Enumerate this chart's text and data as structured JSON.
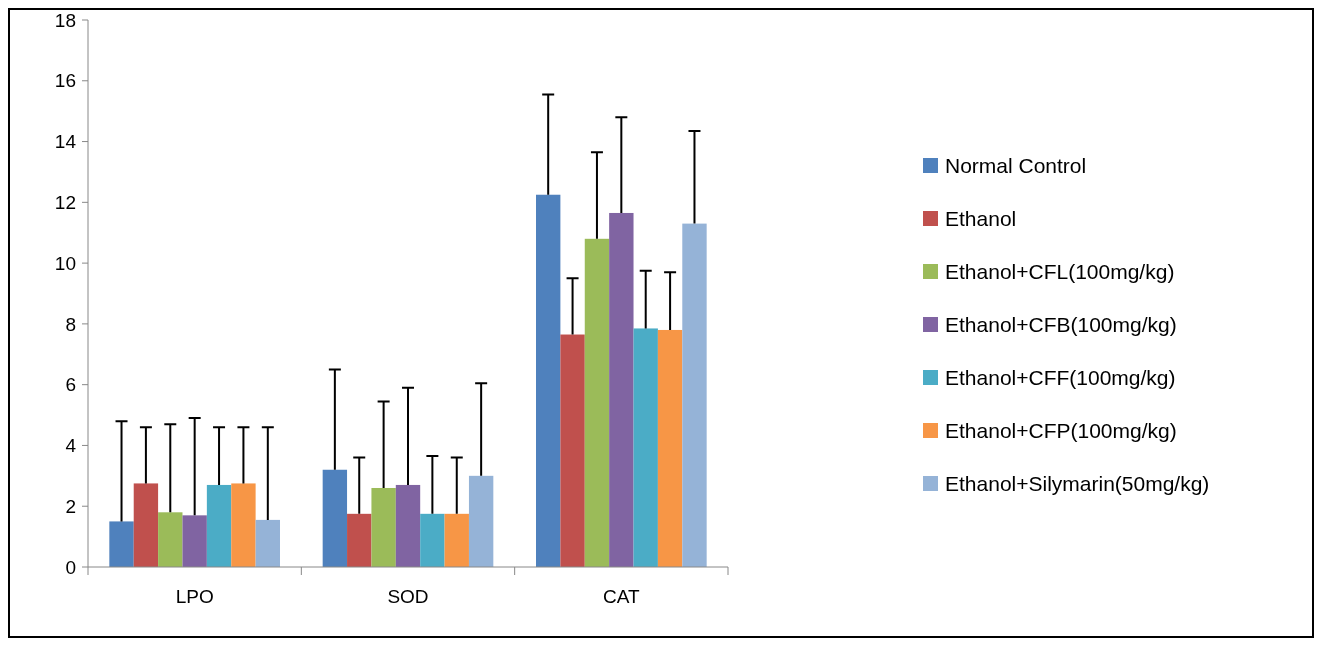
{
  "chart_data": {
    "type": "bar",
    "categories": [
      "LPO",
      "SOD",
      "CAT"
    ],
    "series": [
      {
        "name": "Normal Control",
        "color": "#4f81bd",
        "values": [
          1.5,
          3.2,
          12.25
        ],
        "errors": [
          [
            1.5,
            4.8
          ],
          [
            3.2,
            6.5
          ],
          [
            12.25,
            15.55
          ]
        ]
      },
      {
        "name": "Ethanol",
        "color": "#c0504d",
        "values": [
          2.75,
          1.75,
          7.65
        ],
        "errors": [
          [
            2.75,
            4.6
          ],
          [
            1.75,
            3.6
          ],
          [
            7.65,
            9.5
          ]
        ]
      },
      {
        "name": "Ethanol+CFL(100mg/kg)",
        "color": "#9bbb59",
        "values": [
          1.8,
          2.6,
          10.8
        ],
        "errors": [
          [
            1.8,
            4.7
          ],
          [
            2.6,
            5.45
          ],
          [
            10.8,
            13.65
          ]
        ]
      },
      {
        "name": "Ethanol+CFB(100mg/kg)",
        "color": "#8064a2",
        "values": [
          1.7,
          2.7,
          11.65
        ],
        "errors": [
          [
            1.7,
            4.9
          ],
          [
            2.7,
            5.9
          ],
          [
            11.65,
            14.8
          ]
        ]
      },
      {
        "name": "Ethanol+CFF(100mg/kg)",
        "color": "#4bacc6",
        "values": [
          2.7,
          1.75,
          7.85
        ],
        "errors": [
          [
            2.7,
            4.6
          ],
          [
            1.75,
            3.65
          ],
          [
            7.85,
            9.75
          ]
        ]
      },
      {
        "name": "Ethanol+CFP(100mg/kg)",
        "color": "#f79646",
        "values": [
          2.75,
          1.75,
          7.8
        ],
        "errors": [
          [
            2.75,
            4.6
          ],
          [
            1.75,
            3.6
          ],
          [
            7.8,
            9.7
          ]
        ]
      },
      {
        "name": "Ethanol+Silymarin(50mg/kg)",
        "color": "#95b3d7",
        "values": [
          1.55,
          3.0,
          11.3
        ],
        "errors": [
          [
            1.55,
            4.6
          ],
          [
            3.0,
            6.05
          ],
          [
            11.3,
            14.35
          ]
        ]
      }
    ],
    "ylim": [
      0,
      18
    ],
    "yticks": [
      0,
      2,
      4,
      6,
      8,
      10,
      12,
      14,
      16,
      18
    ],
    "grid": false,
    "legend": "right"
  }
}
